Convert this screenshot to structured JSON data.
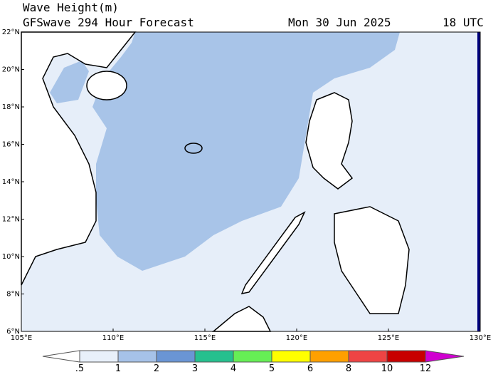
{
  "header": {
    "title": "Wave Height(m)",
    "subtitle": "GFSwave 294 Hour Forecast",
    "date": "Mon 30 Jun 2025",
    "time": "18 UTC"
  },
  "map": {
    "lat_labels": [
      "22°N",
      "20°N",
      "18°N",
      "16°N",
      "14°N",
      "12°N",
      "10°N",
      "8°N",
      "6°N"
    ],
    "lon_labels": [
      "105°E",
      "110°E",
      "115°E",
      "120°E",
      "125°E",
      "130°E"
    ]
  },
  "colorbar": {
    "levels": [
      {
        "value": 0.5,
        "label": ".5"
      },
      1,
      2,
      3,
      4,
      5,
      6,
      8,
      10,
      12
    ],
    "colors": [
      "#e8f0fa",
      "#a6c2e8",
      "#6a95d4",
      "#26c08e",
      "#66ee55",
      "#ffff00",
      "#ffa000",
      "#ee4444",
      "#c80000"
    ],
    "under_color": "#ffffff",
    "over_color": "#d000d0"
  }
}
